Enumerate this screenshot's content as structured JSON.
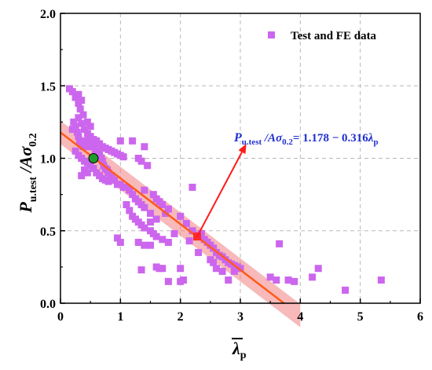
{
  "chart_data": {
    "type": "scatter",
    "xlim": [
      0,
      6
    ],
    "ylim": [
      0,
      2.0
    ],
    "x_ticks": [
      "0",
      "1",
      "2",
      "3",
      "4",
      "5",
      "6"
    ],
    "y_ticks": [
      "0.0",
      "0.5",
      "1.0",
      "1.5",
      "2.0"
    ],
    "grid": true,
    "legend_position": "top-right",
    "ylabel": {
      "main": "P",
      "sub1": "u.test",
      "mid": " /A",
      "sigma": "σ",
      "sub2": "0.2"
    },
    "xlabel": {
      "main": "λ",
      "sub": "p"
    },
    "series": [
      {
        "name": "Test and FE data",
        "color": "#cc66ee",
        "marker": "square",
        "points": [
          [
            0.15,
            1.48
          ],
          [
            0.2,
            1.46
          ],
          [
            0.25,
            1.42
          ],
          [
            0.3,
            1.38
          ],
          [
            0.33,
            1.34
          ],
          [
            0.38,
            1.3
          ],
          [
            0.3,
            1.44
          ],
          [
            0.35,
            1.4
          ],
          [
            0.2,
            1.2
          ],
          [
            0.22,
            1.25
          ],
          [
            0.25,
            1.22
          ],
          [
            0.28,
            1.18
          ],
          [
            0.3,
            1.15
          ],
          [
            0.32,
            1.12
          ],
          [
            0.35,
            1.1
          ],
          [
            0.38,
            1.08
          ],
          [
            0.4,
            1.1
          ],
          [
            0.42,
            1.12
          ],
          [
            0.45,
            1.08
          ],
          [
            0.48,
            1.15
          ],
          [
            0.5,
            1.12
          ],
          [
            0.52,
            1.1
          ],
          [
            0.55,
            1.08
          ],
          [
            0.58,
            1.05
          ],
          [
            0.6,
            1.02
          ],
          [
            0.62,
            1.05
          ],
          [
            0.65,
            1.03
          ],
          [
            0.68,
            1.0
          ],
          [
            0.7,
            0.98
          ],
          [
            0.72,
            0.95
          ],
          [
            0.75,
            0.93
          ],
          [
            0.78,
            0.92
          ],
          [
            0.8,
            0.9
          ],
          [
            0.85,
            0.88
          ],
          [
            0.9,
            0.85
          ],
          [
            0.95,
            0.82
          ],
          [
            1.0,
            0.82
          ],
          [
            1.05,
            0.8
          ],
          [
            1.1,
            0.8
          ],
          [
            1.15,
            0.78
          ],
          [
            0.25,
            1.05
          ],
          [
            0.3,
            1.02
          ],
          [
            0.35,
            1.0
          ],
          [
            0.4,
            0.98
          ],
          [
            0.45,
            0.97
          ],
          [
            0.5,
            0.95
          ],
          [
            0.55,
            0.93
          ],
          [
            0.35,
            0.88
          ],
          [
            0.4,
            0.92
          ],
          [
            0.45,
            0.9
          ],
          [
            0.6,
            0.9
          ],
          [
            0.65,
            0.88
          ],
          [
            0.7,
            0.86
          ],
          [
            0.75,
            0.85
          ],
          [
            0.8,
            0.84
          ],
          [
            0.3,
            1.28
          ],
          [
            0.35,
            1.24
          ],
          [
            0.4,
            1.2
          ],
          [
            0.45,
            1.17
          ],
          [
            0.5,
            1.15
          ],
          [
            0.55,
            1.13
          ],
          [
            0.6,
            1.12
          ],
          [
            0.65,
            1.1
          ],
          [
            0.7,
            1.08
          ],
          [
            0.75,
            1.07
          ],
          [
            0.8,
            1.06
          ],
          [
            0.85,
            1.05
          ],
          [
            0.9,
            1.04
          ],
          [
            0.95,
            1.03
          ],
          [
            1.0,
            1.02
          ],
          [
            1.05,
            1.01
          ],
          [
            0.45,
            1.25
          ],
          [
            0.5,
            1.22
          ],
          [
            1.0,
            1.12
          ],
          [
            1.2,
            1.12
          ],
          [
            1.4,
            1.08
          ],
          [
            1.3,
            1.0
          ],
          [
            1.35,
            0.98
          ],
          [
            1.45,
            0.95
          ],
          [
            1.15,
            0.78
          ],
          [
            1.2,
            0.75
          ],
          [
            1.25,
            0.72
          ],
          [
            1.3,
            0.7
          ],
          [
            1.35,
            0.68
          ],
          [
            1.4,
            0.66
          ],
          [
            1.5,
            0.62
          ],
          [
            1.6,
            0.58
          ],
          [
            1.1,
            0.68
          ],
          [
            1.15,
            0.64
          ],
          [
            1.2,
            0.6
          ],
          [
            1.25,
            0.58
          ],
          [
            1.3,
            0.56
          ],
          [
            1.35,
            0.54
          ],
          [
            1.4,
            0.52
          ],
          [
            1.5,
            0.5
          ],
          [
            1.55,
            0.48
          ],
          [
            1.6,
            0.46
          ],
          [
            1.7,
            0.44
          ],
          [
            1.8,
            0.42
          ],
          [
            1.9,
            0.48
          ],
          [
            1.5,
            0.56
          ],
          [
            1.55,
            0.75
          ],
          [
            1.6,
            0.72
          ],
          [
            1.65,
            0.7
          ],
          [
            1.7,
            0.68
          ],
          [
            1.75,
            0.62
          ],
          [
            1.8,
            0.65
          ],
          [
            2.0,
            0.6
          ],
          [
            2.1,
            0.55
          ],
          [
            2.2,
            0.5
          ],
          [
            2.3,
            0.47
          ],
          [
            2.35,
            0.48
          ],
          [
            2.4,
            0.44
          ],
          [
            2.45,
            0.42
          ],
          [
            2.5,
            0.4
          ],
          [
            2.55,
            0.38
          ],
          [
            2.6,
            0.35
          ],
          [
            2.65,
            0.33
          ],
          [
            2.7,
            0.32
          ],
          [
            2.75,
            0.3
          ],
          [
            2.8,
            0.28
          ],
          [
            2.85,
            0.27
          ],
          [
            2.9,
            0.26
          ],
          [
            2.95,
            0.25
          ],
          [
            3.0,
            0.24
          ],
          [
            1.3,
            0.42
          ],
          [
            1.4,
            0.4
          ],
          [
            1.5,
            0.4
          ],
          [
            1.6,
            0.25
          ],
          [
            1.65,
            0.24
          ],
          [
            1.7,
            0.24
          ],
          [
            1.35,
            0.23
          ],
          [
            1.8,
            0.15
          ],
          [
            2.0,
            0.15
          ],
          [
            2.05,
            0.16
          ],
          [
            2.0,
            0.24
          ],
          [
            2.15,
            0.43
          ],
          [
            2.2,
            0.8
          ],
          [
            2.3,
            0.35
          ],
          [
            2.5,
            0.3
          ],
          [
            2.55,
            0.28
          ],
          [
            2.6,
            0.24
          ],
          [
            2.7,
            0.22
          ],
          [
            2.8,
            0.16
          ],
          [
            2.9,
            0.22
          ],
          [
            2.95,
            0.25
          ],
          [
            0.95,
            0.45
          ],
          [
            1.0,
            0.42
          ],
          [
            1.4,
            0.78
          ],
          [
            3.5,
            0.18
          ],
          [
            3.6,
            0.16
          ],
          [
            3.8,
            0.16
          ],
          [
            3.9,
            0.15
          ],
          [
            3.65,
            0.41
          ],
          [
            4.2,
            0.18
          ],
          [
            4.3,
            0.24
          ],
          [
            4.75,
            0.09
          ],
          [
            5.35,
            0.16
          ]
        ]
      }
    ],
    "fit": {
      "intercept": 1.178,
      "slope": -0.316,
      "color": "#ff5a1a",
      "band_color": "#f08080",
      "band_halfwidth": 0.08,
      "x_range": [
        0,
        3.73
      ]
    },
    "highlight_points": [
      {
        "x": 0.55,
        "y": 1.0,
        "color": "#1f9a2f"
      },
      {
        "x": 2.28,
        "y": 0.46,
        "color": "#ff2a2a"
      }
    ],
    "legend": {
      "label": "Test and FE data",
      "color": "#cc66ee"
    },
    "annotation": {
      "p": "P",
      "sub1": "u.test",
      "mid": " /A",
      "sigma": "σ",
      "sub2": "0.2",
      "rhs": "= 1.178 − 0.316",
      "lambda": "λ",
      "lambda_sub": "p",
      "arrow_from": [
        2.28,
        0.46
      ],
      "arrow_to": [
        3.1,
        1.1
      ],
      "color": "#1f2fd0",
      "arrow_color": "#ff1a1a"
    }
  }
}
